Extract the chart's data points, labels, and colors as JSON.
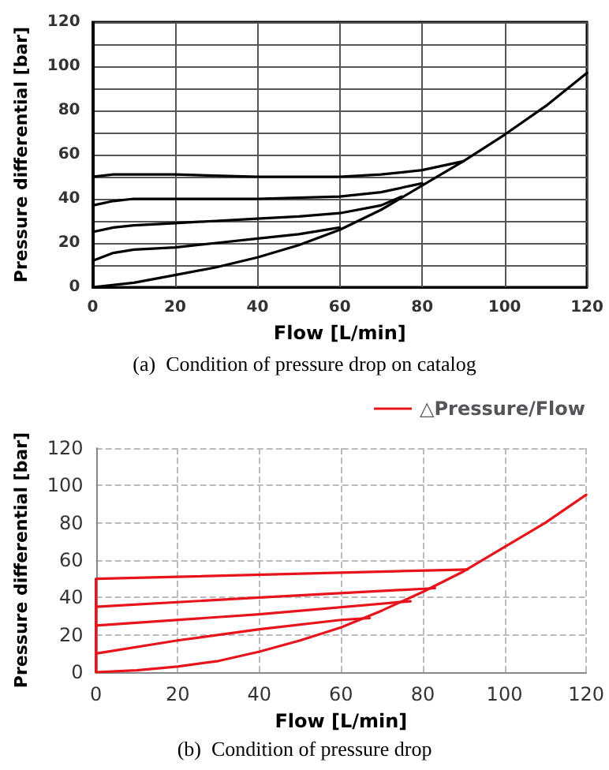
{
  "chart_data": [
    {
      "type": "line",
      "title": "(a)  Condition of pressure drop on catalog",
      "xlabel": "Flow [L/min]",
      "ylabel": "Pressure differential [bar]",
      "xlim": [
        0,
        120
      ],
      "xticks": [
        0,
        20,
        40,
        60,
        80,
        100,
        120
      ],
      "ylim": [
        0,
        120
      ],
      "yticks": [
        0,
        {
          "value": 10,
          "label": null
        },
        20,
        {
          "value": 30,
          "label": null
        },
        40,
        {
          "value": 50,
          "label": null
        },
        60,
        {
          "value": 70,
          "label": null
        },
        80,
        {
          "value": 90,
          "label": null
        },
        100,
        {
          "value": 110,
          "label": null
        },
        120
      ],
      "grid": true,
      "legend": false,
      "marker": "none",
      "line_style": "solid",
      "series": [
        {
          "color": "#000000",
          "x": [
            0,
            10,
            20,
            30,
            40,
            50,
            60,
            70,
            80,
            90,
            100,
            110,
            120
          ],
          "values": [
            0,
            2,
            5.5,
            9,
            13.5,
            19,
            26,
            35,
            46,
            57,
            69,
            82,
            97
          ]
        },
        {
          "color": "#000000",
          "x": [
            0,
            5,
            10,
            20,
            30,
            40,
            50,
            60
          ],
          "values": [
            12,
            15.5,
            17,
            18,
            20,
            22,
            24,
            27
          ]
        },
        {
          "color": "#000000",
          "x": [
            0,
            5,
            10,
            20,
            30,
            40,
            50,
            60,
            70,
            75
          ],
          "values": [
            25,
            27,
            28,
            29,
            30,
            31,
            32,
            33.5,
            37,
            41
          ]
        },
        {
          "color": "#000000",
          "x": [
            0,
            5,
            10,
            20,
            40,
            60,
            70,
            80
          ],
          "values": [
            37,
            39,
            40,
            40,
            40,
            41,
            43,
            47
          ]
        },
        {
          "color": "#000000",
          "x": [
            0,
            5,
            20,
            40,
            60,
            70,
            80,
            90
          ],
          "values": [
            50,
            51,
            51,
            50,
            50,
            51,
            53,
            57
          ]
        }
      ]
    },
    {
      "type": "line",
      "title": "(b)  Condition of pressure drop",
      "xlabel": "Flow [L/min]",
      "ylabel": "Pressure differential [bar]",
      "xlim": [
        0,
        120
      ],
      "xticks": [
        0,
        20,
        40,
        60,
        80,
        100,
        120
      ],
      "ylim": [
        0,
        120
      ],
      "yticks": [
        0,
        20,
        40,
        60,
        80,
        100,
        120
      ],
      "grid": true,
      "legend": "top right",
      "marker": "none",
      "line_style": "solid",
      "series": [
        {
          "name": "△Pressure/Flow",
          "color": "#e8141c",
          "x": [
            0,
            10,
            20,
            30,
            40,
            50,
            60,
            70,
            80,
            90,
            100,
            110,
            120
          ],
          "values": [
            0,
            1,
            3,
            6,
            11,
            17,
            24,
            33,
            43,
            54,
            67,
            80,
            95
          ]
        },
        {
          "color": "#e8141c",
          "x": [
            0,
            0,
            20,
            40,
            60,
            67
          ],
          "values": [
            0,
            10,
            17,
            23,
            28,
            29
          ]
        },
        {
          "color": "#e8141c",
          "x": [
            0,
            0,
            40,
            77
          ],
          "values": [
            10,
            25,
            31,
            38
          ]
        },
        {
          "color": "#e8141c",
          "x": [
            0,
            0,
            40,
            83
          ],
          "values": [
            25,
            35,
            40,
            45
          ]
        },
        {
          "color": "#e8141c",
          "x": [
            0,
            0,
            91
          ],
          "values": [
            35,
            50,
            55
          ]
        }
      ]
    }
  ]
}
